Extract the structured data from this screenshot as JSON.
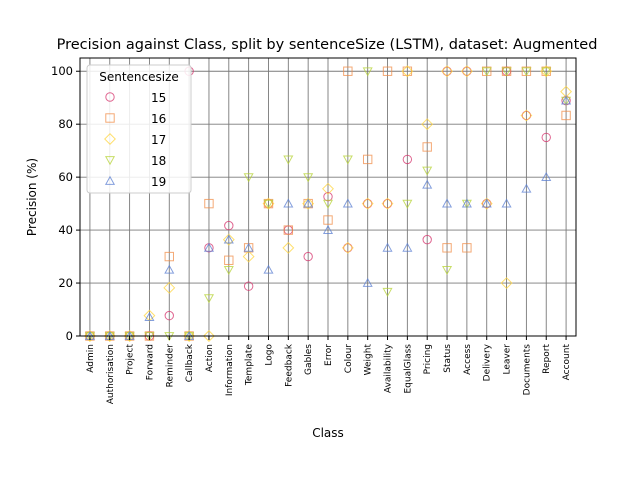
{
  "chart_data": {
    "type": "scatter",
    "title": "Precision against Class, split by sentenceSize (LSTM), dataset: Augmented",
    "xlabel": "Class",
    "ylabel": "Precision (%)",
    "ylim": [
      0,
      105
    ],
    "yticks": [
      0,
      20,
      40,
      60,
      80,
      100
    ],
    "grid": "vertical and horizontal, gray",
    "legend": {
      "title": "Sentencesize",
      "placement": "top-left"
    },
    "categories": [
      "Admin",
      "Authorisation",
      "Project",
      "Forward",
      "Reminder",
      "Callback",
      "Action",
      "Information",
      "Template",
      "Logo",
      "Feedback",
      "Gables",
      "Error",
      "Colour",
      "Weight",
      "Availability",
      "EqualGlass",
      "Pricing",
      "Status",
      "Access",
      "Delivery",
      "Leaver",
      "Documents",
      "Report",
      "Account"
    ],
    "series": [
      {
        "name": "15",
        "marker": "circle",
        "color": "#d6336c",
        "values": [
          0,
          0,
          0,
          0,
          7.7,
          100,
          33.3,
          41.7,
          18.8,
          50,
          40,
          30,
          52.6,
          33.3,
          50,
          50,
          66.7,
          36.4,
          100,
          100,
          50,
          100,
          83.3,
          75,
          88.9
        ]
      },
      {
        "name": "16",
        "marker": "square",
        "color": "#f08c47",
        "values": [
          0,
          0,
          0,
          0,
          30,
          0,
          50,
          28.6,
          33.3,
          50,
          40,
          50,
          43.8,
          100,
          66.7,
          100,
          100,
          71.4,
          33.3,
          33.3,
          100,
          100,
          100,
          100,
          83.3
        ]
      },
      {
        "name": "17",
        "marker": "diamond",
        "color": "#ffd43b",
        "values": [
          0,
          0,
          0,
          7.7,
          18.2,
          0,
          0,
          36.4,
          30,
          50,
          33.3,
          50,
          55.6,
          33.3,
          50,
          50,
          100,
          80,
          100,
          100,
          50,
          20,
          83.3,
          100,
          92.3
        ]
      },
      {
        "name": "18",
        "marker": "triangle-down",
        "color": "#b5d334",
        "values": [
          0,
          0,
          0,
          0,
          0,
          0,
          14.3,
          25,
          60,
          50,
          66.7,
          60,
          50,
          66.7,
          100,
          16.7,
          50,
          62.5,
          25,
          50,
          100,
          100,
          100,
          100,
          88.9
        ]
      },
      {
        "name": "19",
        "marker": "triangle-up",
        "color": "#5b7fd1",
        "values": [
          0,
          0,
          0,
          7.1,
          25,
          0,
          33.3,
          36.4,
          33.3,
          25,
          50,
          50,
          40,
          50,
          20,
          33.3,
          33.3,
          57.1,
          50,
          50,
          50,
          50,
          55.6,
          60,
          88.9
        ]
      }
    ]
  }
}
